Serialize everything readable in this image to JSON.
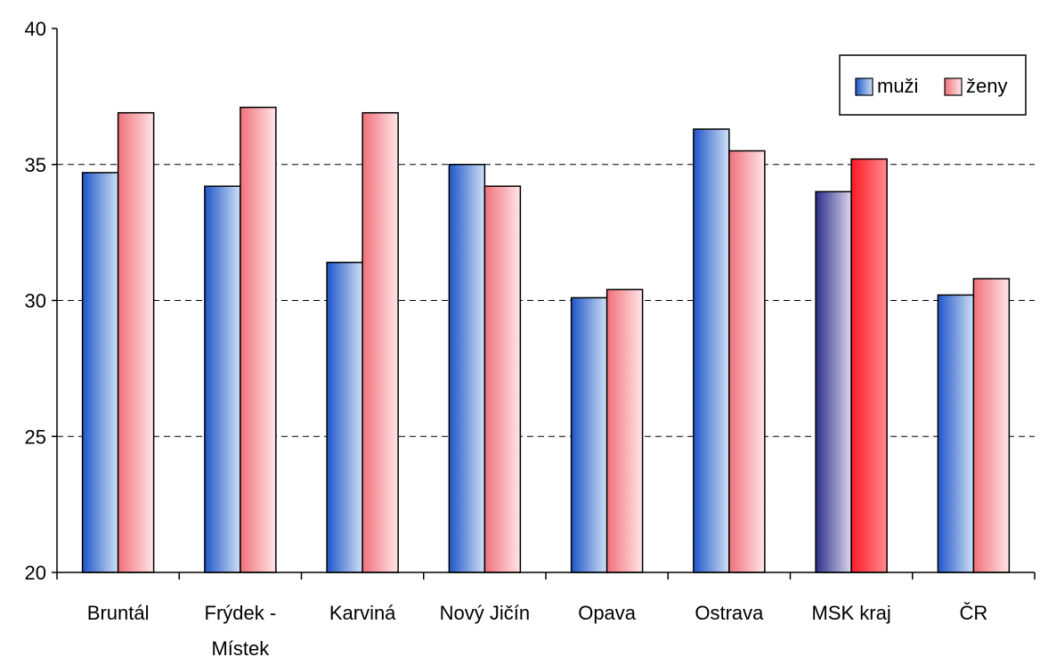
{
  "chart_data": {
    "type": "bar",
    "title": "",
    "xlabel": "",
    "ylabel": "",
    "ylim": [
      20,
      40
    ],
    "yticks": [
      20,
      25,
      30,
      35,
      40
    ],
    "grid": "horizontal-dashed",
    "legend_position": "top-right",
    "categories": [
      "Bruntál",
      "Frýdek -\nMístek",
      "Karviná",
      "Nový Jičín",
      "Opava",
      "Ostrava",
      "MSK kraj",
      "ČR"
    ],
    "series": [
      {
        "name": "muži",
        "values": [
          34.7,
          34.2,
          31.4,
          35.0,
          30.1,
          36.3,
          34.0,
          30.2
        ]
      },
      {
        "name": "ženy",
        "values": [
          36.9,
          37.1,
          36.9,
          34.2,
          30.4,
          35.5,
          35.2,
          30.8
        ]
      }
    ],
    "colors": {
      "muzi_dark": "#1f56c8",
      "muzi_light": "#cfe0f6",
      "zeny_dark": "#f0707a",
      "zeny_light": "#ffe6e8",
      "highlight_muzi_dark": "#2a2f8a",
      "highlight_muzi_light": "#dcd6ee",
      "highlight_zeny_dark": "#ff1a25",
      "highlight_zeny_light": "#ff8a90"
    },
    "highlight_category": "MSK kraj"
  }
}
